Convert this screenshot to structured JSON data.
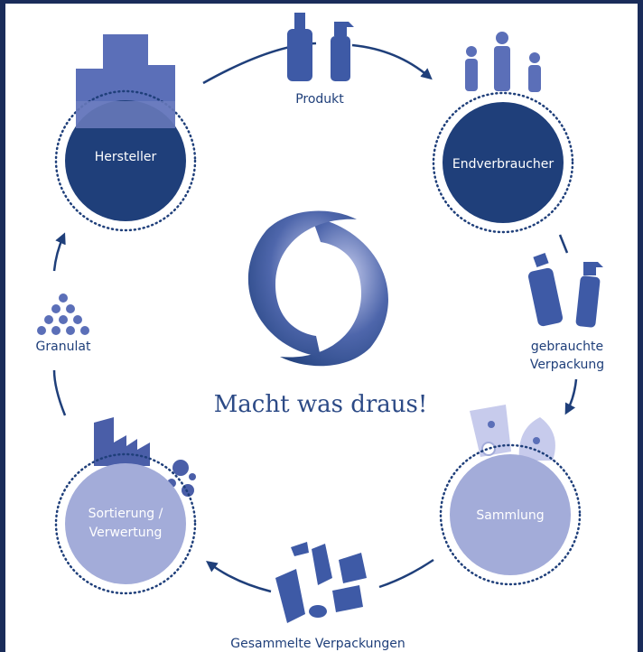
{
  "slogan": "Macht was draus!",
  "nodes": [
    {
      "label": [
        "Hersteller"
      ]
    },
    {
      "label": [
        "Endverbraucher"
      ]
    },
    {
      "label": [
        "Sammlung"
      ]
    },
    {
      "label": [
        "Sortierung /",
        "Verwertung"
      ]
    }
  ],
  "edges": [
    {
      "label": [
        "Produkt"
      ]
    },
    {
      "label": [
        "gebrauchte",
        "Verpackung"
      ]
    },
    {
      "label": [
        "Gesammelte Verpackungen"
      ]
    },
    {
      "label": [
        "Granulat"
      ]
    }
  ]
}
